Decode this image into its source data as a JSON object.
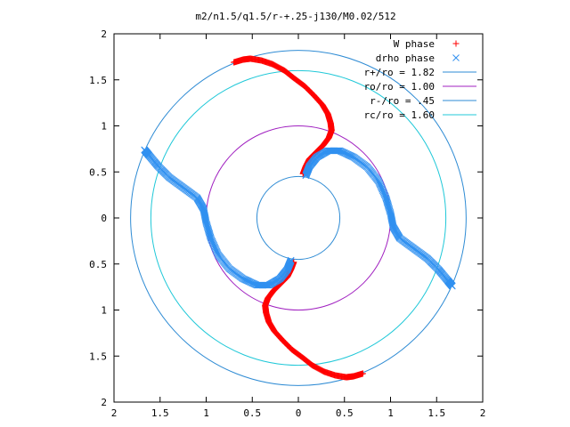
{
  "chart_data": {
    "type": "scatter",
    "title": "m2/n1.5/q1.5/r-+.25-j130/M0.02/512",
    "xlabel": "",
    "ylabel": "",
    "xlim": [
      -2,
      2
    ],
    "ylim": [
      -2,
      2
    ],
    "x_tick_values": [
      -2,
      -1.5,
      -1,
      -0.5,
      0,
      0.5,
      1,
      1.5,
      2
    ],
    "x_tick_labels": [
      "2",
      "1.5",
      "1",
      "0.5",
      "0",
      "0.5",
      "1",
      "1.5",
      "2"
    ],
    "y_tick_values": [
      2,
      1.5,
      1,
      0.5,
      0,
      -0.5,
      -1,
      -1.5,
      -2
    ],
    "y_tick_labels": [
      "2",
      "1.5",
      "1",
      "0.5",
      "0",
      "0.5",
      "1",
      "1.5",
      "2"
    ],
    "grid": false,
    "legend_position": "top-right",
    "legend": [
      {
        "label": "W phase",
        "marker": "+",
        "color": "#ff0000"
      },
      {
        "label": "drho phase",
        "marker": "x",
        "color": "#3090f0"
      },
      {
        "label": "r+/ro = 1.82",
        "line": true,
        "color": "#2e8bd4"
      },
      {
        "label": "ro/ro = 1.00",
        "line": true,
        "color": "#a020c0"
      },
      {
        "label": "r-/ro = .45",
        "line": true,
        "color": "#2e8bd4"
      },
      {
        "label": "rc/ro = 1.60",
        "line": true,
        "color": "#20c8d8"
      }
    ],
    "circles": [
      {
        "name": "r+/ro = 1.82",
        "radius": 1.82,
        "color": "#2e8bd4"
      },
      {
        "name": "ro/ro = 1.00",
        "radius": 1.0,
        "color": "#a020c0"
      },
      {
        "name": "r-/ro = .45",
        "radius": 0.45,
        "color": "#2e8bd4"
      },
      {
        "name": "rc/ro = 1.60",
        "radius": 1.6,
        "color": "#20c8d8"
      }
    ],
    "series": [
      {
        "name": "W phase",
        "color": "#ff0000",
        "marker": "+",
        "arms": [
          [
            [
              -0.7,
              1.69
            ],
            [
              -0.6,
              1.72
            ],
            [
              -0.52,
              1.73
            ],
            [
              -0.4,
              1.71
            ],
            [
              -0.28,
              1.67
            ],
            [
              -0.15,
              1.6
            ],
            [
              -0.05,
              1.52
            ],
            [
              0.07,
              1.43
            ],
            [
              0.17,
              1.33
            ],
            [
              0.26,
              1.23
            ],
            [
              0.32,
              1.13
            ],
            [
              0.35,
              1.03
            ],
            [
              0.36,
              0.95
            ],
            [
              0.33,
              0.87
            ],
            [
              0.27,
              0.79
            ],
            [
              0.2,
              0.72
            ],
            [
              0.12,
              0.64
            ],
            [
              0.08,
              0.56
            ],
            [
              0.05,
              0.48
            ]
          ],
          [
            [
              -0.05,
              -0.48
            ],
            [
              -0.08,
              -0.56
            ],
            [
              -0.12,
              -0.64
            ],
            [
              -0.2,
              -0.72
            ],
            [
              -0.27,
              -0.79
            ],
            [
              -0.33,
              -0.87
            ],
            [
              -0.36,
              -0.95
            ],
            [
              -0.35,
              -1.03
            ],
            [
              -0.32,
              -1.13
            ],
            [
              -0.26,
              -1.23
            ],
            [
              -0.17,
              -1.33
            ],
            [
              -0.07,
              -1.43
            ],
            [
              0.05,
              -1.52
            ],
            [
              0.15,
              -1.6
            ],
            [
              0.28,
              -1.67
            ],
            [
              0.4,
              -1.71
            ],
            [
              0.52,
              -1.73
            ],
            [
              0.6,
              -1.72
            ],
            [
              0.7,
              -1.69
            ]
          ]
        ]
      },
      {
        "name": "drho phase",
        "color": "#3090f0",
        "marker": "x",
        "arms": [
          [
            [
              0.08,
              0.46
            ],
            [
              0.12,
              0.56
            ],
            [
              0.2,
              0.66
            ],
            [
              0.32,
              0.73
            ],
            [
              0.45,
              0.73
            ],
            [
              0.6,
              0.66
            ],
            [
              0.75,
              0.55
            ],
            [
              0.87,
              0.4
            ],
            [
              0.95,
              0.22
            ],
            [
              1.0,
              0.05
            ],
            [
              1.03,
              -0.1
            ],
            [
              1.1,
              -0.22
            ],
            [
              1.25,
              -0.33
            ],
            [
              1.4,
              -0.44
            ],
            [
              1.52,
              -0.56
            ],
            [
              1.62,
              -0.68
            ],
            [
              1.67,
              -0.74
            ]
          ],
          [
            [
              -0.08,
              -0.46
            ],
            [
              -0.12,
              -0.56
            ],
            [
              -0.2,
              -0.66
            ],
            [
              -0.32,
              -0.73
            ],
            [
              -0.45,
              -0.73
            ],
            [
              -0.6,
              -0.66
            ],
            [
              -0.75,
              -0.55
            ],
            [
              -0.87,
              -0.4
            ],
            [
              -0.95,
              -0.22
            ],
            [
              -1.0,
              -0.05
            ],
            [
              -1.03,
              0.1
            ],
            [
              -1.1,
              0.22
            ],
            [
              -1.25,
              0.33
            ],
            [
              -1.4,
              0.44
            ],
            [
              -1.52,
              0.56
            ],
            [
              -1.62,
              0.68
            ],
            [
              -1.67,
              0.74
            ]
          ]
        ]
      }
    ]
  }
}
